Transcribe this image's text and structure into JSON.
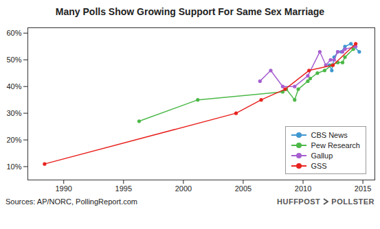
{
  "chart_data": {
    "type": "line",
    "title": "Many Polls Show Growing Support For Same Sex Marriage",
    "source": "Sources: AP/NORC, PollingReport.com",
    "credit": [
      "HUFFPOST",
      "POLLSTER"
    ],
    "xlim": [
      1987,
      2016
    ],
    "xticks": [
      1990,
      1995,
      2000,
      2005,
      2010,
      2015
    ],
    "ylim": [
      5,
      62
    ],
    "yticks": [
      {
        "value": 10,
        "label": "10%"
      },
      {
        "value": 20,
        "label": "20%"
      },
      {
        "value": 30,
        "label": "30%"
      },
      {
        "value": 40,
        "label": "40%"
      },
      {
        "value": 50,
        "label": "50%"
      },
      {
        "value": 60,
        "label": "60%"
      }
    ],
    "grid": false,
    "legend": "bottom-right",
    "marker": "circle",
    "line_style": "solid",
    "series": [
      {
        "name": "CBS News",
        "color": "#3f97d0",
        "x": [
          2012.2,
          2012.4,
          2012.6,
          2012.9,
          2013.2,
          2013.5,
          2014.0,
          2014.7
        ],
        "values": [
          48,
          46,
          51,
          53,
          53,
          55,
          56,
          53
        ]
      },
      {
        "name": "Pew Research",
        "color": "#4cb848",
        "x": [
          1996.3,
          2001.2,
          2008.3,
          2008.6,
          2009.3,
          2009.6,
          2010.4,
          2010.6,
          2011.2,
          2011.8,
          2012.4,
          2012.9,
          2013.3,
          2013.5,
          2014.2
        ],
        "values": [
          27,
          35,
          38,
          39,
          35,
          39,
          42,
          43,
          45,
          46,
          48,
          49,
          49,
          51,
          54
        ]
      },
      {
        "name": "Gallup",
        "color": "#a65fd0",
        "x": [
          2006.4,
          2007.3,
          2008.3,
          2009.3,
          2010.4,
          2011.4,
          2011.9,
          2012.3,
          2012.6,
          2012.9,
          2013.3,
          2013.5,
          2014.4
        ],
        "values": [
          42,
          46,
          40,
          40,
          44,
          53,
          48,
          50,
          50,
          53,
          53,
          54,
          55
        ]
      },
      {
        "name": "GSS",
        "color": "#e8231f",
        "x": [
          1988.4,
          2004.4,
          2006.5,
          2008.5,
          2010.5,
          2012.5,
          2014.4
        ],
        "values": [
          11,
          30,
          35,
          39,
          46,
          48,
          56
        ]
      }
    ]
  }
}
